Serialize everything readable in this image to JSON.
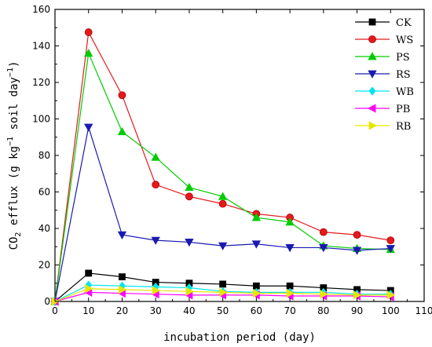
{
  "chart_data": {
    "type": "line",
    "title": "",
    "xlabel": "incubation period (day)",
    "ylabel_parts": {
      "prefix": "CO",
      "sub": "2",
      "mid1": " efflux (g kg",
      "sup1": "−1",
      "mid2": " soil day",
      "sup2": "−1",
      "suffix": ")"
    },
    "xlim": [
      0,
      110
    ],
    "ylim": [
      0,
      160
    ],
    "x_ticks": [
      0,
      10,
      20,
      30,
      40,
      50,
      60,
      70,
      80,
      90,
      100,
      110
    ],
    "y_ticks": [
      0,
      20,
      40,
      60,
      80,
      100,
      120,
      140,
      160
    ],
    "x_tick_labels": [
      "0",
      "10",
      "20",
      "30",
      "40",
      "50",
      "60",
      "70",
      "80",
      "90",
      "100",
      "110"
    ],
    "y_tick_labels": [
      "0",
      "20",
      "40",
      "60",
      "80",
      "100",
      "120",
      "140",
      "160"
    ],
    "grid": false,
    "legend_position": "top-right",
    "x": [
      0,
      10,
      20,
      30,
      40,
      50,
      60,
      70,
      80,
      90,
      100
    ],
    "series": [
      {
        "name": "CK",
        "color": "#000000",
        "marker": "square",
        "values": [
          0,
          15.5,
          13.5,
          10.5,
          10,
          9.5,
          8.5,
          8.5,
          7.5,
          6.5,
          6
        ]
      },
      {
        "name": "WS",
        "color": "#e31a1c",
        "marker": "circle",
        "values": [
          0,
          147.5,
          113,
          64,
          57.5,
          53.5,
          48,
          46,
          38,
          36.5,
          33.5
        ]
      },
      {
        "name": "PS",
        "color": "#00cc00",
        "marker": "triangle-up",
        "values": [
          0,
          136,
          93,
          79,
          62.5,
          57.5,
          46,
          43.5,
          30.5,
          29,
          28.5
        ]
      },
      {
        "name": "RS",
        "color": "#1a1ab0",
        "marker": "triangle-down",
        "values": [
          0,
          95.5,
          36.5,
          33.5,
          32.5,
          30.5,
          31.5,
          29.5,
          29.5,
          28,
          29
        ]
      },
      {
        "name": "WB",
        "color": "#00e5ee",
        "marker": "diamond",
        "values": [
          0,
          9,
          8.5,
          8,
          7.5,
          5.5,
          5,
          5,
          5,
          4,
          4
        ]
      },
      {
        "name": "PB",
        "color": "#ff00ff",
        "marker": "triangle-left",
        "values": [
          0,
          5,
          4.5,
          4,
          3.5,
          3.5,
          3.5,
          3,
          3,
          3,
          2.5
        ]
      },
      {
        "name": "RB",
        "color": "#e6e600",
        "marker": "triangle-right",
        "values": [
          0,
          7,
          6.5,
          6,
          5.5,
          5,
          4.5,
          4.5,
          4,
          3.5,
          3.5
        ]
      }
    ]
  }
}
